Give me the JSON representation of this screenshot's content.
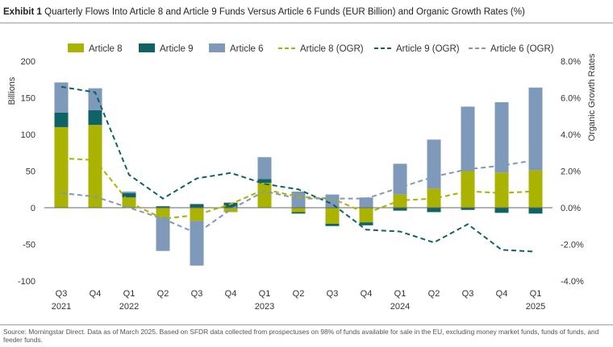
{
  "title": {
    "bold": "Exhibit 1",
    "text": "Quarterly Flows Into Article 8 and Article 9 Funds Versus Article 6 Funds (EUR Billion) and Organic Growth Rates (%)"
  },
  "source": "Source: Morningstar Direct. Data as of March 2025. Based on SFDR data collected from prospectuses on 98% of funds available for sale in the EU, excluding money market funds, funds of funds, and feeder funds.",
  "chart_data": {
    "type": "bar",
    "stacked": true,
    "x_labels": [
      {
        "q": "Q3",
        "y": "2021"
      },
      {
        "q": "Q4",
        "y": ""
      },
      {
        "q": "Q1",
        "y": "2022"
      },
      {
        "q": "Q2",
        "y": ""
      },
      {
        "q": "Q3",
        "y": ""
      },
      {
        "q": "Q4",
        "y": ""
      },
      {
        "q": "Q1",
        "y": "2023"
      },
      {
        "q": "Q2",
        "y": ""
      },
      {
        "q": "Q3",
        "y": ""
      },
      {
        "q": "Q4",
        "y": ""
      },
      {
        "q": "Q1",
        "y": "2024"
      },
      {
        "q": "Q2",
        "y": ""
      },
      {
        "q": "Q3",
        "y": ""
      },
      {
        "q": "Q4",
        "y": ""
      },
      {
        "q": "Q1",
        "y": "2025"
      }
    ],
    "ylabel": "Billions",
    "y2label": "Organic Growth Rates",
    "ylim": [
      -100,
      200
    ],
    "yticks": [
      -100,
      -50,
      0,
      50,
      100,
      150,
      200
    ],
    "y2lim": [
      -4.0,
      8.0
    ],
    "y2ticks": [
      "-4.0%",
      "-2.0%",
      "0.0%",
      "2.0%",
      "4.0%",
      "6.0%",
      "8.0%"
    ],
    "bar_series": [
      {
        "name": "Article 8",
        "color": "#a9b300",
        "values": [
          110,
          113,
          14,
          -12,
          -18,
          -6,
          34,
          -6,
          -22,
          -20,
          18,
          26,
          50,
          48,
          51
        ]
      },
      {
        "name": "Article 9",
        "color": "#0f6265",
        "values": [
          20,
          20,
          6,
          2,
          5,
          7,
          5,
          -2,
          -3,
          -4,
          -4,
          -6,
          -3,
          -7,
          -8
        ]
      },
      {
        "name": "Article 6",
        "color": "#7f99bb",
        "values": [
          41,
          30,
          2,
          -47,
          -61,
          0,
          30,
          22,
          18,
          14,
          42,
          67,
          88,
          96,
          113
        ]
      }
    ],
    "line_series": [
      {
        "name": "Article 8 (OGR)",
        "color": "#a9b300",
        "values": [
          2.7,
          2.6,
          0.3,
          -0.6,
          -0.4,
          0.2,
          1.0,
          0.6,
          0.5,
          -0.3,
          0.4,
          0.5,
          0.9,
          0.8,
          0.9
        ]
      },
      {
        "name": "Article 9 (OGR)",
        "color": "#0f6265",
        "values": [
          6.6,
          6.3,
          1.8,
          0.5,
          1.6,
          1.9,
          1.3,
          1.0,
          0.2,
          -1.2,
          -1.3,
          -1.9,
          -0.9,
          -2.3,
          -2.4
        ]
      },
      {
        "name": "Article 6 (OGR)",
        "color": "#7f99bb",
        "values": [
          0.8,
          0.6,
          0.0,
          -0.6,
          -1.4,
          -0.1,
          0.9,
          0.5,
          0.5,
          0.5,
          1.1,
          1.7,
          2.1,
          2.3,
          2.6
        ]
      }
    ],
    "legend_position": "top",
    "grid": false
  }
}
